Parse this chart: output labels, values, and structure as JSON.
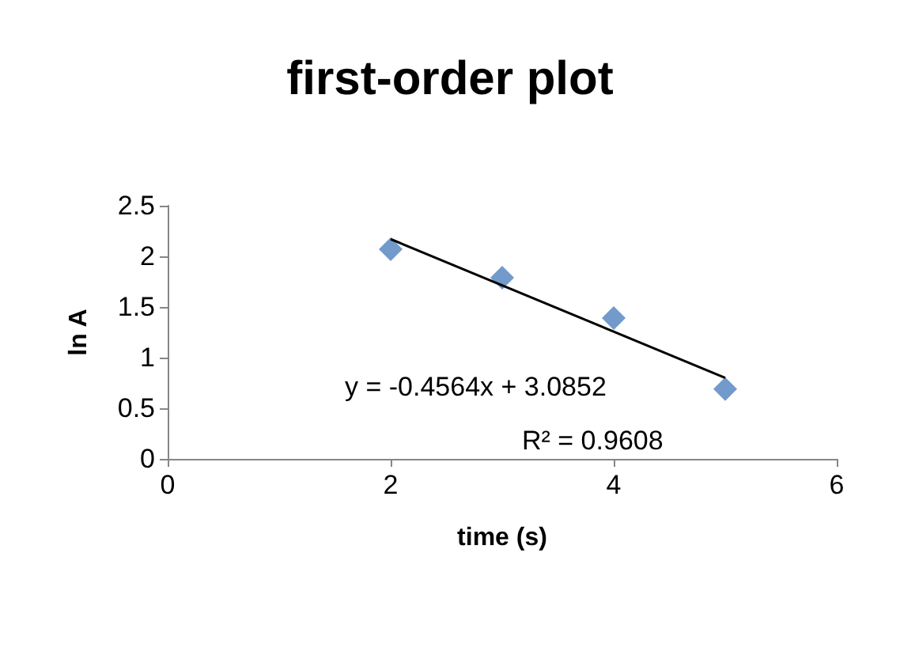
{
  "chart_data": {
    "type": "scatter",
    "title": "first-order plot",
    "xlabel": "time (s)",
    "ylabel": "ln A",
    "x": [
      2,
      3,
      4,
      5
    ],
    "series": [
      {
        "color": "#4f81bd",
        "marker": "diamond",
        "values": [
          2.07,
          1.79,
          1.39,
          0.69
        ]
      },
      {
        "type": "line",
        "color": "#000000",
        "marker": "none",
        "x": [
          2,
          5
        ],
        "values": [
          2.17,
          0.8
        ]
      }
    ],
    "xlim": [
      0,
      6
    ],
    "xticks": [
      0,
      2,
      4,
      6
    ],
    "ylim": [
      0,
      2.5
    ],
    "yticks": [
      0,
      0.5,
      1,
      1.5,
      2,
      2.5
    ],
    "grid": false,
    "annotations": [
      "y = -0.4564x + 3.0852",
      "R² = 0.9608"
    ]
  }
}
